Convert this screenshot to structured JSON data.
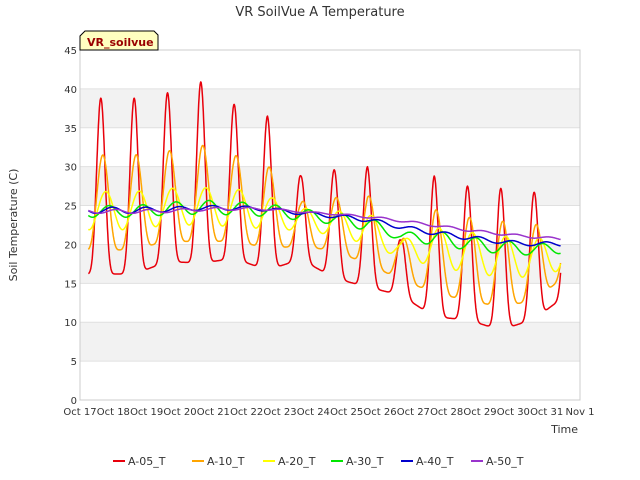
{
  "chart_data": {
    "type": "line",
    "title": "VR SoilVue A Temperature",
    "badge": "VR_soilvue",
    "xlabel": "Time",
    "ylabel": "Soil Temperature (C)",
    "ylim": [
      0,
      45
    ],
    "yticks": [
      0,
      5,
      10,
      15,
      20,
      25,
      30,
      35,
      40,
      45
    ],
    "xlim": [
      "Oct 17",
      "Nov 1"
    ],
    "xticks": [
      "Oct 17",
      "Oct 18",
      "Oct 19",
      "Oct 20",
      "Oct 21",
      "Oct 22",
      "Oct 23",
      "Oct 24",
      "Oct 25",
      "Oct 26",
      "Oct 27",
      "Oct 28",
      "Oct 29",
      "Oct 30",
      "Oct 31",
      "Nov 1"
    ],
    "x_start": "Oct 17 06:00",
    "x_end": "Oct 31 10:00",
    "grid": "horizontal bands",
    "legend": "bottom",
    "series": [
      {
        "name": "A-05_T",
        "color": "#e8000b",
        "daily_max": [
          38.8,
          39.5,
          40.9,
          38.0,
          36.5,
          28.8,
          29.6,
          30.0,
          20.5,
          28.8,
          27.5,
          27.2,
          26.7,
          28.3
        ],
        "daily_min": [
          16.2,
          17.8,
          17.6,
          18.2,
          16.7,
          18.1,
          15.7,
          14.5,
          13.5,
          10.7,
          10.3,
          9.0,
          10.4,
          13.6
        ]
      },
      {
        "name": "A-10_T",
        "color": "#ffa500",
        "daily_max": [
          31.5,
          32.0,
          32.8,
          31.5,
          30.2,
          25.5,
          26.0,
          26.5,
          20.5,
          24.5,
          23.5,
          23.0,
          22.5,
          23.5
        ],
        "daily_min": [
          19.3,
          20.5,
          20.3,
          20.5,
          19.5,
          19.8,
          19.2,
          17.5,
          15.5,
          13.8,
          12.8,
          12.0,
          12.8,
          16.2
        ]
      },
      {
        "name": "A-20_T",
        "color": "#ffff00",
        "daily_max": [
          26.8,
          27.2,
          27.3,
          27.2,
          26.2,
          24.7,
          24.3,
          24.2,
          20.5,
          22.2,
          21.6,
          21.1,
          20.8,
          21.1
        ],
        "daily_min": [
          21.9,
          22.5,
          22.5,
          22.3,
          22.0,
          21.8,
          21.2,
          20.0,
          18.3,
          17.2,
          16.4,
          15.8,
          15.8,
          16.9
        ]
      },
      {
        "name": "A-30_T",
        "color": "#00e600",
        "daily_max": [
          25.0,
          25.4,
          25.7,
          25.5,
          25.2,
          24.6,
          24.0,
          23.6,
          21.5,
          21.8,
          21.0,
          20.5,
          20.1,
          20.2
        ],
        "daily_min": [
          23.5,
          23.8,
          23.9,
          23.8,
          23.6,
          23.1,
          22.6,
          21.8,
          20.6,
          19.9,
          19.3,
          18.8,
          18.6,
          18.9
        ]
      },
      {
        "name": "A-40_T",
        "color": "#0000cc",
        "daily_max": [
          24.8,
          24.8,
          25.0,
          25.0,
          24.8,
          24.3,
          23.9,
          23.5,
          22.5,
          21.8,
          21.2,
          20.6,
          20.3,
          20.4
        ],
        "daily_min": [
          24.0,
          24.2,
          24.4,
          24.4,
          24.3,
          23.8,
          23.4,
          22.9,
          22.0,
          21.2,
          20.6,
          20.1,
          19.8,
          19.8
        ]
      },
      {
        "name": "A-50_T",
        "color": "#9933cc",
        "daily_max": [
          24.5,
          24.5,
          24.7,
          24.8,
          24.7,
          24.3,
          24.0,
          23.7,
          23.2,
          22.6,
          22.0,
          21.5,
          21.1,
          20.8
        ],
        "daily_min": [
          24.0,
          24.1,
          24.3,
          24.4,
          24.4,
          24.1,
          23.8,
          23.4,
          22.9,
          22.3,
          21.7,
          21.2,
          20.8,
          20.5
        ]
      }
    ]
  }
}
